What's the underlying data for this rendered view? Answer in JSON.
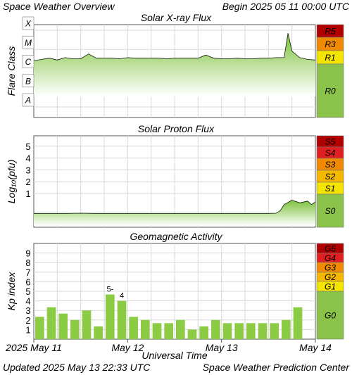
{
  "header": {
    "title": "Space Weather Overview",
    "begin": "Begin 2025 05 11 00:00 UTC"
  },
  "footer": {
    "updated": "Updated 2025 May 13 22:33 UTC",
    "credit": "Space Weather Prediction Center"
  },
  "colors": {
    "frame_bg": "#ffffff",
    "grid": "#d8d8d8",
    "fill_green": "#8ccc44",
    "fill_green_light": "#e8f6d4",
    "scale_0": "#8bc34a",
    "scale_1": "#f3e500",
    "scale_2": "#f5b800",
    "scale_3": "#f08a00",
    "scale_4": "#e02020",
    "scale_5": "#b00000"
  },
  "chart_data": [
    {
      "type": "area",
      "title": "Solar X-ray Flux",
      "ylabel": "Flare Class",
      "xlabel": "",
      "y_scale": "log",
      "y_tick_labels": [
        "A",
        "B",
        "C",
        "M",
        "X"
      ],
      "x_range": [
        "2025-05-11T00:00",
        "2025-05-14T00:00"
      ],
      "series": [
        {
          "x_hours": [
            0,
            2,
            4,
            6,
            8,
            10,
            12,
            14,
            16,
            18,
            20,
            22,
            24,
            26,
            28,
            30,
            32,
            34,
            36,
            38,
            40,
            42,
            44,
            46,
            48,
            50,
            52,
            54,
            56,
            58,
            60,
            62,
            64,
            65,
            66,
            68,
            70,
            72
          ],
          "values": [
            1.1e-06,
            1.3e-06,
            1.5e-06,
            1.2e-06,
            1.6e-06,
            1.4e-06,
            1.4e-06,
            2.5e-06,
            1.5e-06,
            1.5e-06,
            1.5e-06,
            1.4e-06,
            1.6e-06,
            1.5e-06,
            1.5e-06,
            1.5e-06,
            1.5e-06,
            1.4e-06,
            1.5e-06,
            1.5e-06,
            1.5e-06,
            1.5e-06,
            2.2e-06,
            1.5e-06,
            1.4e-06,
            1.4e-06,
            1.5e-06,
            1.4e-06,
            1.4e-06,
            1.5e-06,
            1.5e-06,
            1.6e-06,
            1.6e-06,
            3e-05,
            3.5e-06,
            1.6e-06,
            1.3e-06,
            1.2e-06
          ]
        }
      ],
      "scale_labels": [
        "R5",
        "R3",
        "R1",
        "R0"
      ]
    },
    {
      "type": "area",
      "title": "Solar Proton Flux",
      "ylabel": "Log₁₀(pfu)",
      "xlabel": "",
      "y_scale": "log",
      "y_tick_labels": [
        "1",
        "2",
        "3",
        "4",
        "5"
      ],
      "x_range": [
        "2025-05-11T00:00",
        "2025-05-14T00:00"
      ],
      "series": [
        {
          "x_hours": [
            0,
            4,
            8,
            12,
            16,
            20,
            24,
            28,
            32,
            36,
            40,
            44,
            48,
            52,
            56,
            60,
            62,
            63,
            64,
            66,
            68,
            70,
            71,
            72
          ],
          "values": [
            -0.05,
            -0.05,
            -0.05,
            -0.04,
            -0.05,
            -0.05,
            -0.05,
            -0.05,
            -0.05,
            -0.05,
            -0.05,
            -0.05,
            -0.05,
            -0.05,
            -0.05,
            -0.05,
            -0.04,
            0.1,
            0.45,
            0.7,
            0.55,
            0.65,
            0.45,
            0.6
          ]
        }
      ],
      "scale_labels": [
        "S5",
        "S4",
        "S3",
        "S2",
        "S1",
        "S0"
      ]
    },
    {
      "type": "bar",
      "title": "Geomagnetic Activity",
      "ylabel": "Kp index",
      "xlabel": "Universal Time",
      "ylim": [
        0,
        10
      ],
      "y_tick_labels": [
        "1",
        "2",
        "3",
        "4",
        "5",
        "6",
        "7",
        "8",
        "9"
      ],
      "x_tick_labels": [
        "2025 May 11",
        "May 12",
        "May 13",
        "May 14"
      ],
      "categories": [
        "11/00",
        "11/03",
        "11/06",
        "11/09",
        "11/12",
        "11/15",
        "11/18",
        "11/21",
        "12/00",
        "12/03",
        "12/06",
        "12/09",
        "12/12",
        "12/15",
        "12/18",
        "12/21",
        "13/00",
        "13/03",
        "13/06",
        "13/09",
        "13/12",
        "13/15",
        "13/18",
        "13/21"
      ],
      "values": [
        2.33,
        3.33,
        2.67,
        2.0,
        3.0,
        1.33,
        4.67,
        4.0,
        2.33,
        2.0,
        1.67,
        1.67,
        2.0,
        1.0,
        1.33,
        2.0,
        1.67,
        1.67,
        1.67,
        1.67,
        1.67,
        2.0,
        3.33,
        0
      ],
      "bar_labels": [
        {
          "index": 6,
          "text": "5-"
        },
        {
          "index": 7,
          "text": "4"
        }
      ],
      "scale_labels": [
        "G5",
        "G4",
        "G3",
        "G2",
        "G1",
        "G0"
      ]
    }
  ]
}
